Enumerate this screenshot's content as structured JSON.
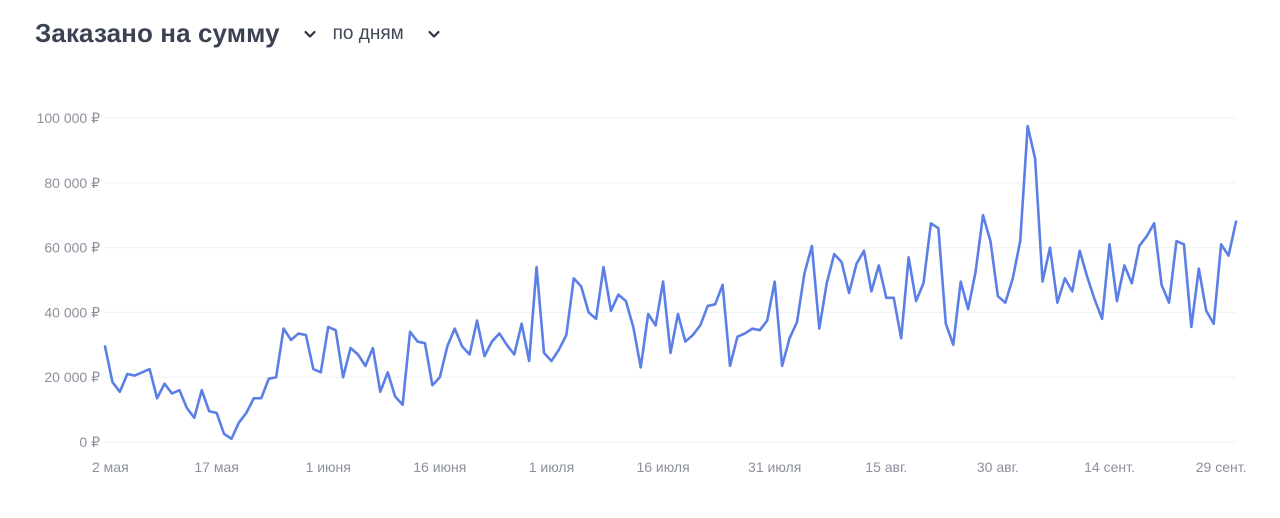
{
  "header": {
    "title": "Заказано на сумму",
    "period": "по дням"
  },
  "colors": {
    "line": "#5b7fe6",
    "grid": "#eef0f3",
    "tick": "#8b909c",
    "title": "#3b4253"
  },
  "chart_data": {
    "type": "line",
    "title": "Заказано на сумму",
    "ylim": [
      0,
      100000
    ],
    "y_ticks": [
      0,
      20000,
      40000,
      60000,
      80000,
      100000
    ],
    "y_tick_labels": [
      "0 ₽",
      "20 000 ₽",
      "40 000 ₽",
      "60 000 ₽",
      "80 000 ₽",
      "100 000 ₽"
    ],
    "x_ticks": [
      {
        "day": 0,
        "label": "2 мая"
      },
      {
        "day": 15,
        "label": "17 мая"
      },
      {
        "day": 30,
        "label": "1 июня"
      },
      {
        "day": 45,
        "label": "16 июня"
      },
      {
        "day": 60,
        "label": "1 июля"
      },
      {
        "day": 75,
        "label": "16 июля"
      },
      {
        "day": 90,
        "label": "31 июля"
      },
      {
        "day": 105,
        "label": "15 авг."
      },
      {
        "day": 120,
        "label": "30 авг."
      },
      {
        "day": 135,
        "label": "14 сент."
      },
      {
        "day": 150,
        "label": "29 сент."
      }
    ],
    "series": [
      {
        "values": [
          29500,
          18500,
          15500,
          21000,
          20500,
          21500,
          22500,
          13500,
          18000,
          15000,
          16000,
          10500,
          7500,
          16000,
          9500,
          9000,
          2500,
          1000,
          6000,
          9000,
          13500,
          13500,
          19500,
          20000,
          35000,
          31500,
          33500,
          33000,
          22500,
          21500,
          35500,
          34500,
          20000,
          29000,
          27000,
          23500,
          29000,
          15500,
          21500,
          14000,
          11500,
          34000,
          31000,
          30500,
          17500,
          20000,
          29500,
          35000,
          29500,
          27000,
          37500,
          26500,
          31000,
          33500,
          30000,
          27000,
          36500,
          25000,
          54000,
          27500,
          25000,
          28500,
          33000,
          50500,
          48000,
          40000,
          38000,
          54000,
          40500,
          45500,
          43500,
          35500,
          23000,
          39500,
          36000,
          49500,
          27500,
          39500,
          31000,
          33000,
          36000,
          42000,
          42500,
          48500,
          23500,
          32500,
          33500,
          35000,
          34500,
          37500,
          49500,
          23500,
          32000,
          37000,
          52000,
          60500,
          35000,
          49000,
          58000,
          55500,
          46000,
          55000,
          59000,
          46500,
          54500,
          44500,
          44500,
          32000,
          57000,
          43500,
          49000,
          67500,
          66000,
          36500,
          30000,
          49500,
          41000,
          52500,
          70000,
          62000,
          45000,
          43000,
          50500,
          62000,
          97500,
          87500,
          49500,
          60000,
          43000,
          50500,
          46500,
          59000,
          51000,
          44000,
          38000,
          61000,
          43500,
          54500,
          49000,
          60500,
          63500,
          67500,
          48500,
          43000,
          62000,
          61000,
          35500,
          53500,
          40500,
          36500,
          61000,
          57500,
          68000
        ]
      }
    ],
    "grid": true
  }
}
